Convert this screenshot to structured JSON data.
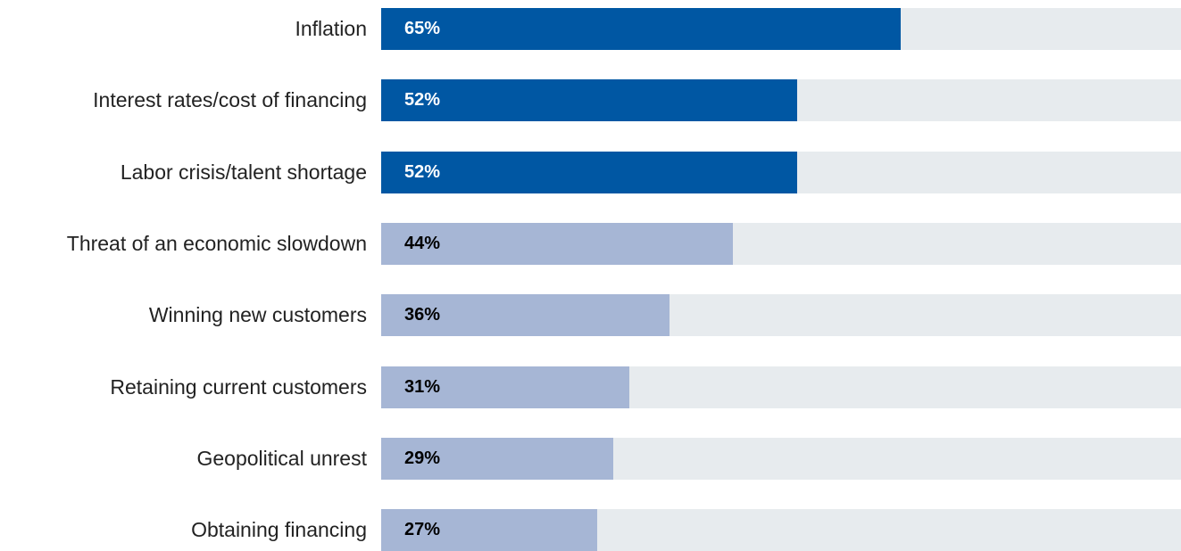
{
  "chart_data": {
    "type": "bar",
    "orientation": "horizontal",
    "categories": [
      "Inflation",
      "Interest rates/cost of financing",
      "Labor crisis/talent shortage",
      "Threat of an economic slowdown",
      "Winning new customers",
      "Retaining current customers",
      "Geopolitical unrest",
      "Obtaining financing"
    ],
    "values": [
      65,
      52,
      52,
      44,
      36,
      31,
      29,
      27
    ],
    "value_labels": [
      "65%",
      "52%",
      "52%",
      "44%",
      "36%",
      "31%",
      "29%",
      "27%"
    ],
    "highlight": [
      true,
      true,
      true,
      false,
      false,
      false,
      false,
      false
    ],
    "xlim": [
      0,
      100
    ],
    "title": "",
    "xlabel": "",
    "ylabel": "",
    "grid": false,
    "legend": "none",
    "colors": {
      "highlight_bar": "#0057a3",
      "normal_bar": "#a6b6d5",
      "track": "#e7ebee",
      "highlight_value_text": "#ffffff",
      "normal_value_text": "#000000",
      "category_text": "#222222"
    }
  }
}
